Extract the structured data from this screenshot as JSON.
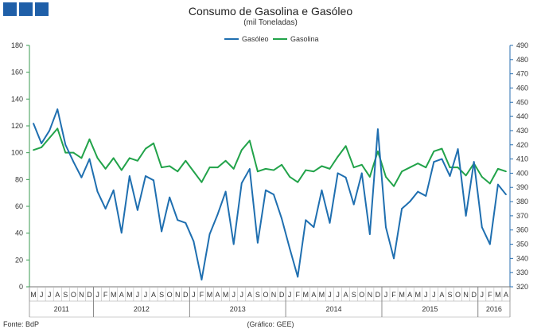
{
  "header": {
    "title": "Consumo de Gasolina e Gasóleo",
    "subtitle": "(mil Toneladas)"
  },
  "footer": {
    "source": "Fonte: BdP",
    "credit": "(Gráfico: GEE)"
  },
  "colors": {
    "gasoleo": "#1f6fb0",
    "gasolina": "#22a34a",
    "left_axis": "#3a9a52",
    "right_axis": "#2a6fb0",
    "logo": "#1f5fa8"
  },
  "chart_data": {
    "type": "line",
    "title": "Consumo de Gasolina e Gasóleo",
    "subtitle": "(mil Toneladas)",
    "grid": false,
    "legend_position": "top-center",
    "left_axis": {
      "range": [
        0,
        180
      ],
      "ticks": [
        0,
        20,
        40,
        60,
        80,
        100,
        120,
        140,
        160,
        180
      ],
      "series": "Gasolina"
    },
    "right_axis": {
      "range": [
        320,
        490
      ],
      "ticks": [
        320,
        330,
        340,
        350,
        360,
        370,
        380,
        390,
        400,
        410,
        420,
        430,
        440,
        450,
        460,
        470,
        480,
        490
      ],
      "series": "Gasóleo"
    },
    "month_labels": [
      "M",
      "J",
      "J",
      "A",
      "S",
      "O",
      "N",
      "D",
      "J",
      "F",
      "M",
      "A",
      "M",
      "J",
      "J",
      "A",
      "S",
      "O",
      "N",
      "D",
      "J",
      "F",
      "M",
      "A",
      "M",
      "J",
      "J",
      "A",
      "S",
      "O",
      "N",
      "D",
      "J",
      "F",
      "M",
      "A",
      "M",
      "J",
      "J",
      "A",
      "S",
      "O",
      "N",
      "D",
      "J",
      "F",
      "M",
      "A",
      "M",
      "J",
      "J",
      "A",
      "S",
      "O",
      "N",
      "D",
      "J",
      "F",
      "M",
      "A"
    ],
    "years": [
      {
        "label": "2011",
        "start": 0,
        "end": 7
      },
      {
        "label": "2012",
        "start": 8,
        "end": 19
      },
      {
        "label": "2013",
        "start": 20,
        "end": 31
      },
      {
        "label": "2014",
        "start": 32,
        "end": 43
      },
      {
        "label": "2015",
        "start": 44,
        "end": 55
      },
      {
        "label": "2016",
        "start": 56,
        "end": 59
      }
    ],
    "series": [
      {
        "name": "Gasóleo",
        "axis": "right",
        "values": [
          435,
          421,
          430,
          445,
          420,
          408,
          397,
          410,
          387,
          375,
          388,
          358,
          398,
          374,
          398,
          395,
          359,
          383,
          367,
          365,
          352,
          325,
          357,
          371,
          387,
          350,
          393,
          403,
          351,
          388,
          385,
          368,
          347,
          327,
          367,
          362,
          388,
          365,
          400,
          397,
          378,
          400,
          357,
          431,
          362,
          340,
          375,
          380,
          387,
          384,
          408,
          410,
          398,
          417,
          370,
          408,
          362,
          350,
          392,
          385
        ]
      },
      {
        "name": "Gasolina",
        "axis": "left",
        "values": [
          102,
          104,
          111,
          118,
          100,
          100,
          96,
          110,
          96,
          88,
          96,
          87,
          96,
          94,
          103,
          107,
          89,
          90,
          86,
          94,
          86,
          78,
          89,
          89,
          94,
          88,
          102,
          109,
          86,
          88,
          87,
          91,
          82,
          78,
          87,
          86,
          90,
          88,
          97,
          105,
          89,
          91,
          82,
          101,
          82,
          75,
          86,
          89,
          92,
          89,
          101,
          103,
          89,
          89,
          83,
          92,
          82,
          77,
          88,
          86
        ]
      }
    ]
  }
}
